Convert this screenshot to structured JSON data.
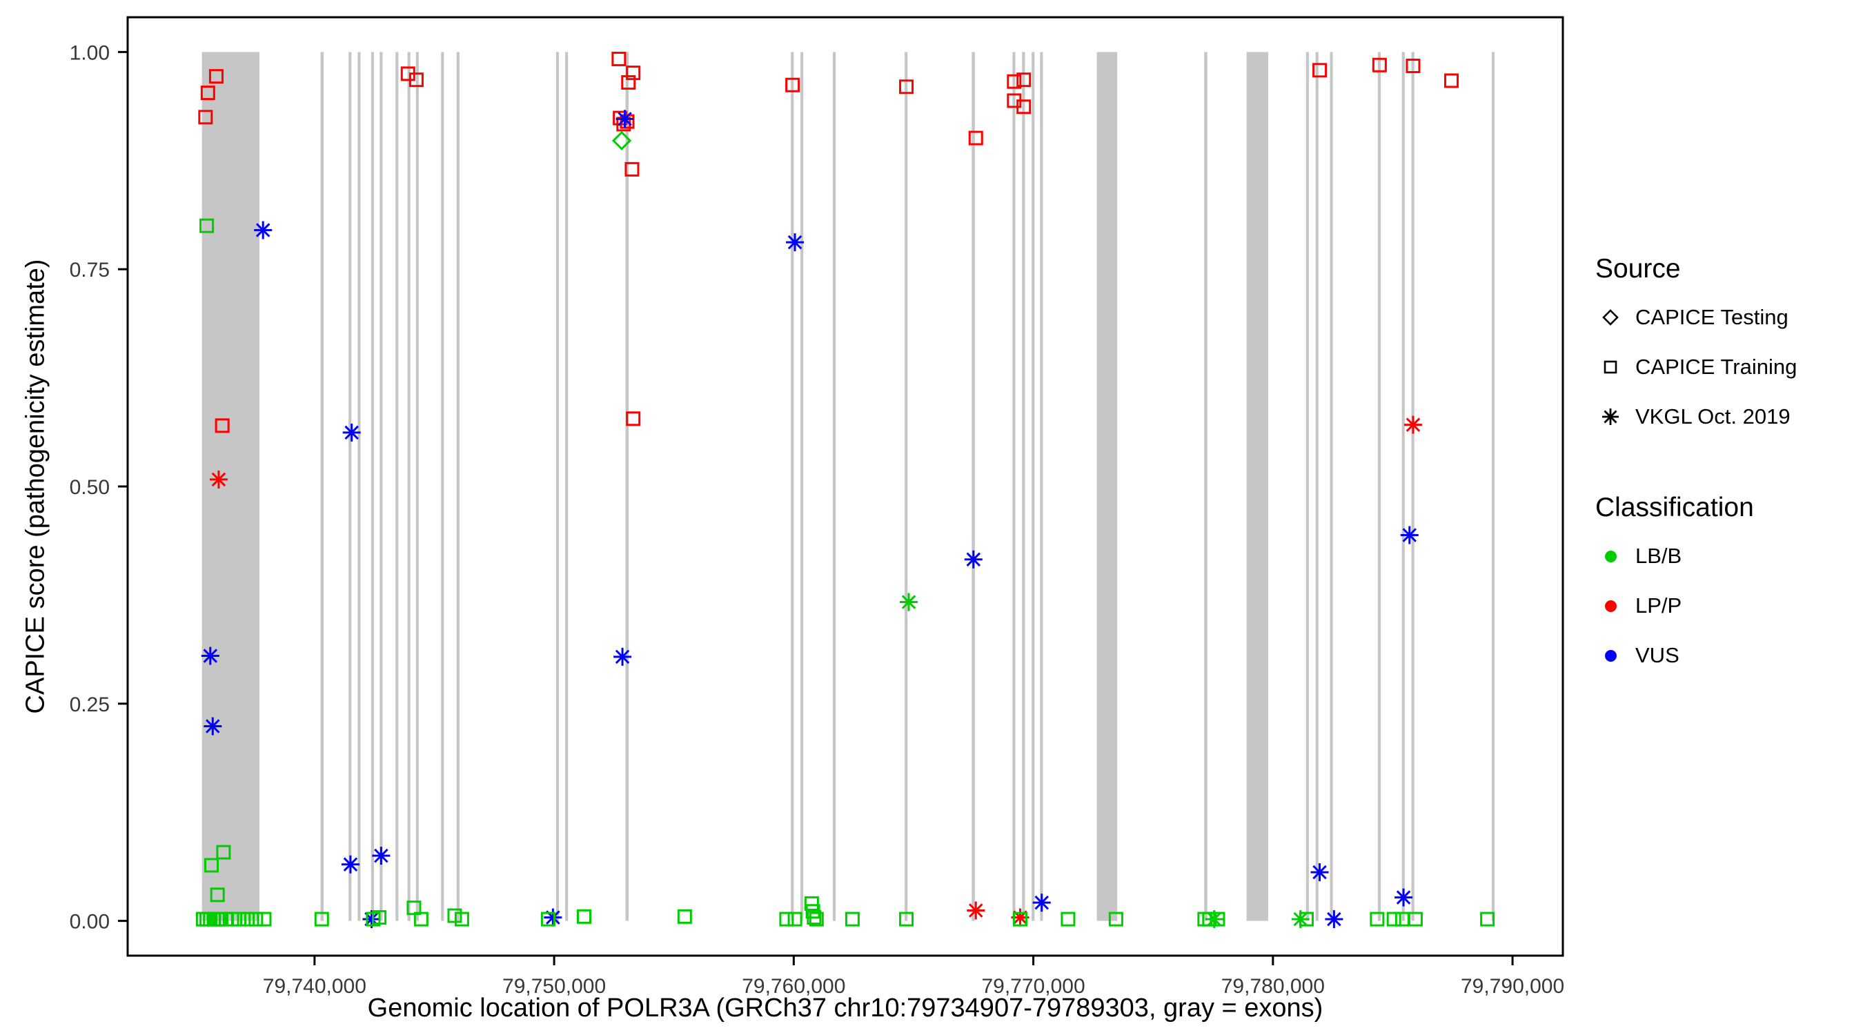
{
  "chart_data": {
    "type": "scatter",
    "title": "",
    "xlabel": "Genomic location of POLR3A (GRCh37 chr10:79734907-79789303, gray = exons)",
    "ylabel": "CAPICE score (pathogenicity estimate)",
    "x_domain": [
      79732200,
      79792100
    ],
    "y_domain": [
      -0.04,
      1.04
    ],
    "x_ticks": [
      {
        "value": 79740000,
        "label": "79,740,000"
      },
      {
        "value": 79750000,
        "label": "79,750,000"
      },
      {
        "value": 79760000,
        "label": "79,760,000"
      },
      {
        "value": 79770000,
        "label": "79,770,000"
      },
      {
        "value": 79780000,
        "label": "79,780,000"
      },
      {
        "value": 79790000,
        "label": "79,790,000"
      }
    ],
    "y_ticks": [
      {
        "value": 0.0,
        "label": "0.00"
      },
      {
        "value": 0.25,
        "label": "0.25"
      },
      {
        "value": 0.5,
        "label": "0.50"
      },
      {
        "value": 0.75,
        "label": "0.75"
      },
      {
        "value": 1.0,
        "label": "1.00"
      }
    ],
    "grid": false,
    "legend_position": "right",
    "exon_color": "#c6c6c6",
    "exon_band": {
      "ymin": 0,
      "ymax": 1
    },
    "exons": [
      [
        79735300,
        79737700
      ],
      [
        79740250,
        79740380
      ],
      [
        79741420,
        79741540
      ],
      [
        79741800,
        79741920
      ],
      [
        79742360,
        79742480
      ],
      [
        79742720,
        79742840
      ],
      [
        79743380,
        79743500
      ],
      [
        79743880,
        79744000
      ],
      [
        79744230,
        79744350
      ],
      [
        79745280,
        79745400
      ],
      [
        79745930,
        79746050
      ],
      [
        79750080,
        79750200
      ],
      [
        79750460,
        79750580
      ],
      [
        79752980,
        79753110
      ],
      [
        79759880,
        79760000
      ],
      [
        79760280,
        79760400
      ],
      [
        79761630,
        79761750
      ],
      [
        79764630,
        79764750
      ],
      [
        79767430,
        79767560
      ],
      [
        79769130,
        79769250
      ],
      [
        79769530,
        79769650
      ],
      [
        79769930,
        79770050
      ],
      [
        79770280,
        79770400
      ],
      [
        79772650,
        79773500
      ],
      [
        79777130,
        79777260
      ],
      [
        79778900,
        79779800
      ],
      [
        79781380,
        79781500
      ],
      [
        79781780,
        79781900
      ],
      [
        79782380,
        79782500
      ],
      [
        79784380,
        79784500
      ],
      [
        79785380,
        79785500
      ],
      [
        79785780,
        79785900
      ],
      [
        79789130,
        79789250
      ]
    ],
    "classification_colors": {
      "LB/B": "#00cd00",
      "LP/P": "#ff0000",
      "VUS": "#0000ff"
    },
    "source_shapes": {
      "CAPICE Testing": "diamond",
      "CAPICE Training": "square",
      "VKGL Oct. 2019": "asterisk"
    },
    "points_columns": [
      "position",
      "score",
      "source",
      "classification"
    ],
    "points": [
      [
        79735450,
        0.925,
        "CAPICE Training",
        "LP/P"
      ],
      [
        79735550,
        0.953,
        "CAPICE Training",
        "LP/P"
      ],
      [
        79735900,
        0.972,
        "CAPICE Training",
        "LP/P"
      ],
      [
        79736150,
        0.57,
        "CAPICE Training",
        "LP/P"
      ],
      [
        79736000,
        0.508,
        "VKGL Oct. 2019",
        "LP/P"
      ],
      [
        79735500,
        0.8,
        "CAPICE Training",
        "LB/B"
      ],
      [
        79737850,
        0.795,
        "VKGL Oct. 2019",
        "VUS"
      ],
      [
        79735650,
        0.305,
        "VKGL Oct. 2019",
        "VUS"
      ],
      [
        79735750,
        0.224,
        "VKGL Oct. 2019",
        "VUS"
      ],
      [
        79736200,
        0.079,
        "CAPICE Training",
        "LB/B"
      ],
      [
        79735700,
        0.064,
        "CAPICE Training",
        "LB/B"
      ],
      [
        79735950,
        0.03,
        "CAPICE Training",
        "LB/B"
      ],
      [
        79735350,
        0.002,
        "CAPICE Training",
        "LB/B"
      ],
      [
        79735500,
        0.002,
        "CAPICE Training",
        "LB/B"
      ],
      [
        79735650,
        0.002,
        "CAPICE Training",
        "LB/B"
      ],
      [
        79735800,
        0.002,
        "CAPICE Training",
        "LB/B"
      ],
      [
        79735950,
        0.002,
        "CAPICE Training",
        "LB/B"
      ],
      [
        79736100,
        0.002,
        "CAPICE Training",
        "LB/B"
      ],
      [
        79736300,
        0.002,
        "CAPICE Training",
        "LB/B"
      ],
      [
        79736550,
        0.002,
        "CAPICE Training",
        "LB/B"
      ],
      [
        79736850,
        0.002,
        "CAPICE Training",
        "LB/B"
      ],
      [
        79737200,
        0.002,
        "CAPICE Training",
        "LB/B"
      ],
      [
        79737550,
        0.002,
        "CAPICE Training",
        "LB/B"
      ],
      [
        79737900,
        0.002,
        "CAPICE Training",
        "LB/B"
      ],
      [
        79740300,
        0.002,
        "CAPICE Training",
        "LB/B"
      ],
      [
        79741550,
        0.562,
        "VKGL Oct. 2019",
        "VUS"
      ],
      [
        79741500,
        0.065,
        "VKGL Oct. 2019",
        "VUS"
      ],
      [
        79742380,
        0.002,
        "VKGL Oct. 2019",
        "VUS"
      ],
      [
        79742450,
        0.002,
        "CAPICE Training",
        "LB/B"
      ],
      [
        79742780,
        0.075,
        "VKGL Oct. 2019",
        "VUS"
      ],
      [
        79742700,
        0.004,
        "CAPICE Training",
        "LB/B"
      ],
      [
        79743900,
        0.975,
        "CAPICE Training",
        "LP/P"
      ],
      [
        79744250,
        0.968,
        "CAPICE Training",
        "LP/P"
      ],
      [
        79744150,
        0.015,
        "CAPICE Training",
        "LB/B"
      ],
      [
        79744450,
        0.002,
        "CAPICE Training",
        "LB/B"
      ],
      [
        79745850,
        0.006,
        "CAPICE Training",
        "LB/B"
      ],
      [
        79746150,
        0.002,
        "CAPICE Training",
        "LB/B"
      ],
      [
        79749950,
        0.004,
        "VKGL Oct. 2019",
        "VUS"
      ],
      [
        79749750,
        0.002,
        "CAPICE Training",
        "LB/B"
      ],
      [
        79751250,
        0.005,
        "CAPICE Training",
        "LB/B"
      ],
      [
        79752700,
        0.992,
        "CAPICE Training",
        "LP/P"
      ],
      [
        79753100,
        0.965,
        "CAPICE Training",
        "LP/P"
      ],
      [
        79753300,
        0.976,
        "CAPICE Training",
        "LP/P"
      ],
      [
        79752750,
        0.924,
        "CAPICE Training",
        "LP/P"
      ],
      [
        79752900,
        0.917,
        "CAPICE Training",
        "LP/P"
      ],
      [
        79753050,
        0.92,
        "CAPICE Training",
        "LP/P"
      ],
      [
        79752950,
        0.923,
        "VKGL Oct. 2019",
        "VUS"
      ],
      [
        79752820,
        0.898,
        "CAPICE Testing",
        "LB/B"
      ],
      [
        79753250,
        0.865,
        "CAPICE Training",
        "LP/P"
      ],
      [
        79753300,
        0.578,
        "CAPICE Training",
        "LP/P"
      ],
      [
        79752850,
        0.304,
        "VKGL Oct. 2019",
        "VUS"
      ],
      [
        79755450,
        0.005,
        "CAPICE Training",
        "LB/B"
      ],
      [
        79759950,
        0.962,
        "CAPICE Training",
        "LP/P"
      ],
      [
        79760050,
        0.781,
        "VKGL Oct. 2019",
        "VUS"
      ],
      [
        79759700,
        0.002,
        "CAPICE Training",
        "LB/B"
      ],
      [
        79760050,
        0.002,
        "CAPICE Training",
        "LB/B"
      ],
      [
        79760750,
        0.02,
        "CAPICE Training",
        "LB/B"
      ],
      [
        79760800,
        0.011,
        "CAPICE Training",
        "LB/B"
      ],
      [
        79760850,
        0.004,
        "CAPICE Training",
        "LB/B"
      ],
      [
        79760950,
        0.002,
        "CAPICE Training",
        "LB/B"
      ],
      [
        79762450,
        0.002,
        "CAPICE Training",
        "LB/B"
      ],
      [
        79764700,
        0.96,
        "CAPICE Training",
        "LP/P"
      ],
      [
        79764800,
        0.367,
        "VKGL Oct. 2019",
        "LB/B"
      ],
      [
        79764700,
        0.002,
        "CAPICE Training",
        "LB/B"
      ],
      [
        79767600,
        0.901,
        "CAPICE Training",
        "LP/P"
      ],
      [
        79767500,
        0.416,
        "VKGL Oct. 2019",
        "VUS"
      ],
      [
        79767600,
        0.012,
        "VKGL Oct. 2019",
        "LP/P"
      ],
      [
        79769200,
        0.966,
        "CAPICE Training",
        "LP/P"
      ],
      [
        79769600,
        0.968,
        "CAPICE Training",
        "LP/P"
      ],
      [
        79769200,
        0.944,
        "CAPICE Training",
        "LP/P"
      ],
      [
        79769600,
        0.937,
        "CAPICE Training",
        "LP/P"
      ],
      [
        79769450,
        0.004,
        "VKGL Oct. 2019",
        "LP/P"
      ],
      [
        79769450,
        0.002,
        "CAPICE Training",
        "LB/B"
      ],
      [
        79770350,
        0.021,
        "VKGL Oct. 2019",
        "VUS"
      ],
      [
        79771450,
        0.002,
        "CAPICE Training",
        "LB/B"
      ],
      [
        79773450,
        0.002,
        "CAPICE Training",
        "LB/B"
      ],
      [
        79777150,
        0.002,
        "CAPICE Training",
        "LB/B"
      ],
      [
        79777350,
        0.002,
        "CAPICE Training",
        "LB/B"
      ],
      [
        79777550,
        0.002,
        "VKGL Oct. 2019",
        "LB/B"
      ],
      [
        79777700,
        0.002,
        "CAPICE Training",
        "LB/B"
      ],
      [
        79781150,
        0.002,
        "VKGL Oct. 2019",
        "LB/B"
      ],
      [
        79781400,
        0.002,
        "CAPICE Training",
        "LB/B"
      ],
      [
        79781950,
        0.979,
        "CAPICE Training",
        "LP/P"
      ],
      [
        79781950,
        0.056,
        "VKGL Oct. 2019",
        "VUS"
      ],
      [
        79782550,
        0.002,
        "VKGL Oct. 2019",
        "VUS"
      ],
      [
        79784450,
        0.985,
        "CAPICE Training",
        "LP/P"
      ],
      [
        79784350,
        0.002,
        "CAPICE Training",
        "LB/B"
      ],
      [
        79785050,
        0.002,
        "CAPICE Training",
        "LB/B"
      ],
      [
        79785850,
        0.984,
        "CAPICE Training",
        "LP/P"
      ],
      [
        79785850,
        0.571,
        "VKGL Oct. 2019",
        "LP/P"
      ],
      [
        79785700,
        0.444,
        "VKGL Oct. 2019",
        "VUS"
      ],
      [
        79785450,
        0.027,
        "VKGL Oct. 2019",
        "VUS"
      ],
      [
        79785400,
        0.002,
        "CAPICE Training",
        "LB/B"
      ],
      [
        79785950,
        0.002,
        "CAPICE Training",
        "LB/B"
      ],
      [
        79787450,
        0.967,
        "CAPICE Training",
        "LP/P"
      ],
      [
        79788950,
        0.002,
        "CAPICE Training",
        "LB/B"
      ]
    ]
  },
  "legend": {
    "source": {
      "title": "Source",
      "items": [
        {
          "label": "CAPICE Testing",
          "icon": "diamond-icon"
        },
        {
          "label": "CAPICE Training",
          "icon": "square-icon"
        },
        {
          "label": "VKGL Oct. 2019",
          "icon": "asterisk-icon"
        }
      ]
    },
    "classification": {
      "title": "Classification",
      "items": [
        {
          "label": "LB/B",
          "color": "#00cd00"
        },
        {
          "label": "LP/P",
          "color": "#ff0000"
        },
        {
          "label": "VUS",
          "color": "#0000ff"
        }
      ]
    }
  }
}
